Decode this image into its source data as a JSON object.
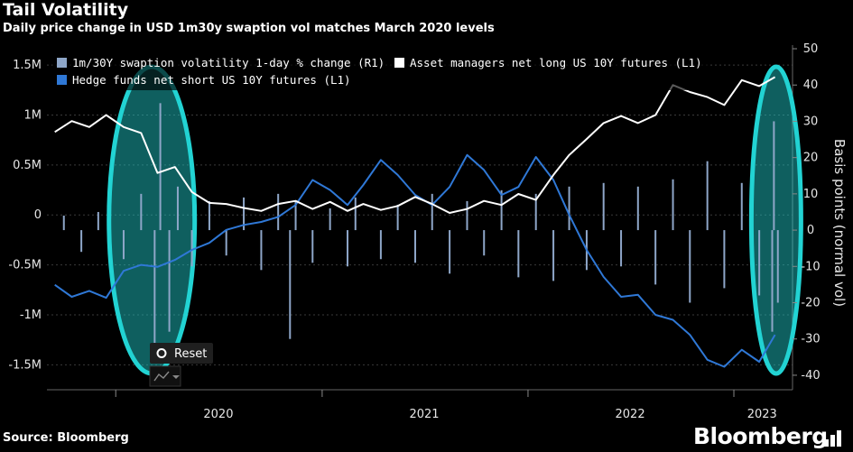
{
  "header": {
    "title": "Tail Volatility",
    "subtitle": "Daily price change in USD 1m30y swaption vol matches March 2020 levels"
  },
  "footer": {
    "source": "Source: Bloomberg",
    "brand": "Bloomberg"
  },
  "controls": {
    "reset_label": "Reset"
  },
  "colors": {
    "background": "#000000",
    "grid": "#3a3a3a",
    "swaption_bars": "#8ea6c8",
    "asset_managers_line": "#ffffff",
    "hedge_funds_line": "#2f78d6",
    "highlight": "#22d3d3"
  },
  "chart_data": {
    "type": "line",
    "x_axis": {
      "type": "date",
      "tick_labels": [
        "2020",
        "2021",
        "2022",
        "2023"
      ]
    },
    "y_left": {
      "ticks": [
        -1500000,
        -1000000,
        -500000,
        0,
        500000,
        1000000,
        1500000
      ],
      "tick_labels": [
        "-1.5M",
        "-1M",
        "-0.5M",
        "0",
        "0.5M",
        "1M",
        "1.5M"
      ],
      "ylim": [
        -1750000,
        1700000
      ]
    },
    "y_right": {
      "label": "Basis points (normal vol)",
      "ticks": [
        -40,
        -30,
        -20,
        -10,
        0,
        10,
        20,
        30,
        40,
        50
      ],
      "tick_labels": [
        "-40",
        "-30",
        "-20",
        "-10",
        "0",
        "10",
        "20",
        "30",
        "40",
        "50"
      ],
      "ylim": [
        -44,
        51
      ]
    },
    "grid": true,
    "legend_position": "top-left",
    "series": [
      {
        "name": "1m/30Y swaption volatility 1-day % change (R1)",
        "axis": "right",
        "kind": "bar",
        "color": "#8ea6c8",
        "x": [
          "2019-10-01",
          "2019-11-01",
          "2019-12-01",
          "2020-01-15",
          "2020-02-15",
          "2020-03-10",
          "2020-03-20",
          "2020-04-05",
          "2020-04-20",
          "2020-05-15",
          "2020-06-15",
          "2020-07-15",
          "2020-08-15",
          "2020-09-15",
          "2020-10-15",
          "2020-11-05",
          "2020-11-15",
          "2020-12-15",
          "2021-01-15",
          "2021-02-15",
          "2021-03-01",
          "2021-04-15",
          "2021-05-15",
          "2021-06-15",
          "2021-07-15",
          "2021-08-15",
          "2021-09-15",
          "2021-10-15",
          "2021-11-15",
          "2021-12-15",
          "2022-01-15",
          "2022-02-15",
          "2022-03-15",
          "2022-04-15",
          "2022-05-15",
          "2022-06-15",
          "2022-07-15",
          "2022-08-15",
          "2022-09-15",
          "2022-10-15",
          "2022-11-15",
          "2022-12-15",
          "2023-01-15",
          "2023-02-15",
          "2023-03-10",
          "2023-03-13",
          "2023-03-20"
        ],
        "values": [
          4,
          -6,
          5,
          -8,
          10,
          -33,
          35,
          -28,
          12,
          -10,
          8,
          -7,
          9,
          -11,
          10,
          -30,
          8,
          -9,
          6,
          -10,
          9,
          -8,
          7,
          -9,
          10,
          -12,
          8,
          -7,
          11,
          -13,
          10,
          -14,
          12,
          -11,
          13,
          -10,
          12,
          -15,
          14,
          -20,
          19,
          -16,
          13,
          -18,
          -28,
          30,
          -20
        ]
      },
      {
        "name": "Asset managers net long US 10Y futures  (L1)",
        "axis": "left",
        "kind": "line",
        "color": "#ffffff",
        "x": [
          "2019-09-15",
          "2019-10-15",
          "2019-11-15",
          "2019-12-15",
          "2020-01-15",
          "2020-02-15",
          "2020-03-15",
          "2020-04-15",
          "2020-05-15",
          "2020-06-15",
          "2020-07-15",
          "2020-08-15",
          "2020-09-15",
          "2020-10-15",
          "2020-11-15",
          "2020-12-15",
          "2021-01-15",
          "2021-02-15",
          "2021-03-15",
          "2021-04-15",
          "2021-05-15",
          "2021-06-15",
          "2021-07-15",
          "2021-08-15",
          "2021-09-15",
          "2021-10-15",
          "2021-11-15",
          "2021-12-15",
          "2022-01-15",
          "2022-02-15",
          "2022-03-15",
          "2022-04-15",
          "2022-05-15",
          "2022-06-15",
          "2022-07-15",
          "2022-08-15",
          "2022-09-15",
          "2022-10-15",
          "2022-11-15",
          "2022-12-15",
          "2023-01-15",
          "2023-02-15",
          "2023-03-15"
        ],
        "values": [
          830000,
          940000,
          880000,
          1000000,
          880000,
          820000,
          420000,
          480000,
          230000,
          120000,
          110000,
          70000,
          40000,
          110000,
          140000,
          60000,
          130000,
          40000,
          110000,
          50000,
          90000,
          180000,
          110000,
          20000,
          60000,
          140000,
          100000,
          210000,
          150000,
          400000,
          600000,
          760000,
          920000,
          990000,
          920000,
          1000000,
          1300000,
          1230000,
          1180000,
          1100000,
          1350000,
          1290000,
          1380000
        ]
      },
      {
        "name": "Hedge funds net short US 10Y futures  (L1)",
        "axis": "left",
        "kind": "line",
        "color": "#2f78d6",
        "x": [
          "2019-09-15",
          "2019-10-15",
          "2019-11-15",
          "2019-12-15",
          "2020-01-15",
          "2020-02-15",
          "2020-03-15",
          "2020-04-15",
          "2020-05-15",
          "2020-06-15",
          "2020-07-15",
          "2020-08-15",
          "2020-09-15",
          "2020-10-15",
          "2020-11-15",
          "2020-12-15",
          "2021-01-15",
          "2021-02-15",
          "2021-03-15",
          "2021-04-15",
          "2021-05-15",
          "2021-06-15",
          "2021-07-15",
          "2021-08-15",
          "2021-09-15",
          "2021-10-15",
          "2021-11-15",
          "2021-12-15",
          "2022-01-15",
          "2022-02-15",
          "2022-03-15",
          "2022-04-15",
          "2022-05-15",
          "2022-06-15",
          "2022-07-15",
          "2022-08-15",
          "2022-09-15",
          "2022-10-15",
          "2022-11-15",
          "2022-12-15",
          "2023-01-15",
          "2023-02-15",
          "2023-03-15"
        ],
        "values": [
          -700000,
          -820000,
          -760000,
          -830000,
          -560000,
          -500000,
          -520000,
          -450000,
          -350000,
          -280000,
          -150000,
          -100000,
          -70000,
          -20000,
          100000,
          350000,
          250000,
          100000,
          300000,
          550000,
          400000,
          200000,
          100000,
          280000,
          600000,
          450000,
          200000,
          280000,
          580000,
          350000,
          0,
          -350000,
          -620000,
          -820000,
          -800000,
          -1000000,
          -1050000,
          -1200000,
          -1450000,
          -1520000,
          -1350000,
          -1470000,
          -1200000
        ]
      }
    ],
    "annotations": [
      {
        "type": "ellipse-highlight",
        "x_range": [
          "2019-12-20",
          "2020-05-20"
        ]
      },
      {
        "type": "ellipse-highlight",
        "x_range": [
          "2023-02-01",
          "2023-04-30"
        ]
      }
    ]
  }
}
